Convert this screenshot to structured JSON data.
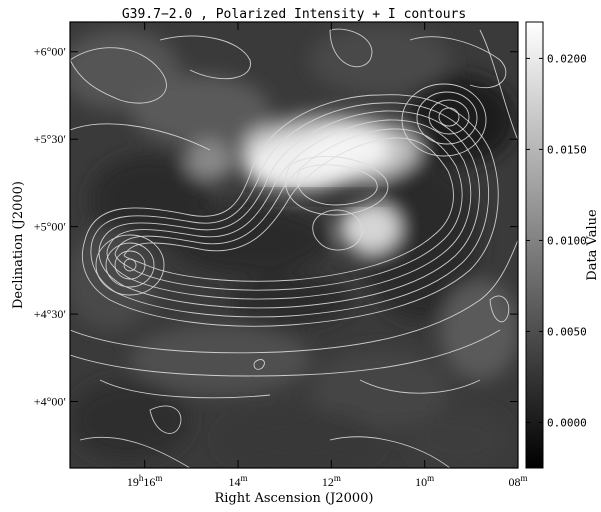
{
  "chart_data": {
    "type": "heatmap",
    "title": "G39.7−2.0 , Polarized Intensity + I contours",
    "xlabel": "Right Ascension (J2000)",
    "ylabel": "Declination (J2000)",
    "colorbar_label": "Data Value",
    "colormap": "grayscale",
    "x_ticks": [
      {
        "label": "19h16m",
        "h": "19",
        "m": "16",
        "ra_min": 16
      },
      {
        "label": "14m",
        "h": "",
        "m": "14",
        "ra_min": 14
      },
      {
        "label": "12m",
        "h": "",
        "m": "12",
        "ra_min": 12
      },
      {
        "label": "10m",
        "h": "",
        "m": "10",
        "ra_min": 10
      },
      {
        "label": "08m",
        "h": "",
        "m": "08",
        "ra_min": 8
      }
    ],
    "y_ticks": [
      {
        "label": "+6°00′",
        "dec_deg": 6.0
      },
      {
        "label": "+5°30′",
        "dec_deg": 5.5
      },
      {
        "label": "+5°00′",
        "dec_deg": 5.0
      },
      {
        "label": "+4°30′",
        "dec_deg": 4.5
      },
      {
        "label": "+4°00′",
        "dec_deg": 4.0
      }
    ],
    "colorbar_ticks": [
      {
        "label": "0.0200",
        "value": 0.02
      },
      {
        "label": "0.0150",
        "value": 0.015
      },
      {
        "label": "0.0100",
        "value": 0.01
      },
      {
        "label": "0.0050",
        "value": 0.005
      },
      {
        "label": "0.0000",
        "value": 0.0
      }
    ],
    "colorbar_range": [
      -0.0025,
      0.022
    ],
    "xlim_ra_min": [
      17.6,
      8.0
    ],
    "ylim_dec_deg": [
      3.62,
      6.17
    ],
    "features": [
      {
        "name": "bright polarized patch",
        "ra_min": 12.4,
        "dec_deg": 5.4,
        "value": 0.022
      },
      {
        "name": "secondary polarized patch",
        "ra_min": 11.0,
        "dec_deg": 5.0,
        "value": 0.017
      },
      {
        "name": "contour peak west",
        "ra_min": 9.3,
        "dec_deg": 5.68
      },
      {
        "name": "contour peak east",
        "ra_min": 15.8,
        "dec_deg": 4.8
      }
    ]
  }
}
